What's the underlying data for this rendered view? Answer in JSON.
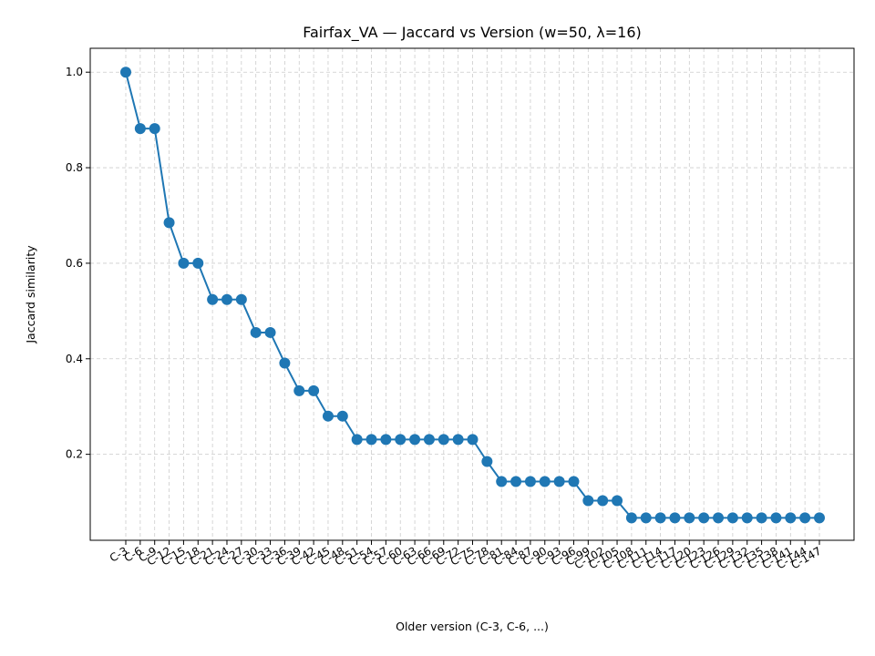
{
  "chart_data": {
    "type": "line",
    "title": "Fairfax_VA — Jaccard vs Version (w=50, λ=16)",
    "xlabel": "Older version (C-3, C-6, ...)",
    "ylabel": "Jaccard similarity",
    "ylim": [
      0.02,
      1.05
    ],
    "yticks": [
      0.2,
      0.4,
      0.6,
      0.8,
      1.0
    ],
    "ytick_labels": [
      "0.2",
      "0.4",
      "0.6",
      "0.8",
      "1.0"
    ],
    "grid": true,
    "color": "#1f77b4",
    "categories": [
      "C-3",
      "C-6",
      "C-9",
      "C-12",
      "C-15",
      "C-18",
      "C-21",
      "C-24",
      "C-27",
      "C-30",
      "C-33",
      "C-36",
      "C-39",
      "C-42",
      "C-45",
      "C-48",
      "C-51",
      "C-54",
      "C-57",
      "C-60",
      "C-63",
      "C-66",
      "C-69",
      "C-72",
      "C-75",
      "C-78",
      "C-81",
      "C-84",
      "C-87",
      "C-90",
      "C-93",
      "C-96",
      "C-99",
      "C-102",
      "C-105",
      "C-108",
      "C-111",
      "C-114",
      "C-117",
      "C-120",
      "C-123",
      "C-126",
      "C-129",
      "C-132",
      "C-135",
      "C-138",
      "C-141",
      "C-144",
      "C-147"
    ],
    "values": [
      1.0,
      0.882,
      0.882,
      0.685,
      0.6,
      0.6,
      0.524,
      0.524,
      0.524,
      0.455,
      0.455,
      0.391,
      0.333,
      0.333,
      0.28,
      0.28,
      0.231,
      0.231,
      0.231,
      0.231,
      0.231,
      0.231,
      0.231,
      0.231,
      0.231,
      0.185,
      0.143,
      0.143,
      0.143,
      0.143,
      0.143,
      0.143,
      0.103,
      0.103,
      0.103,
      0.067,
      0.067,
      0.067,
      0.067,
      0.067,
      0.067,
      0.067,
      0.067,
      0.067,
      0.067,
      0.067,
      0.067,
      0.067,
      0.067
    ]
  }
}
